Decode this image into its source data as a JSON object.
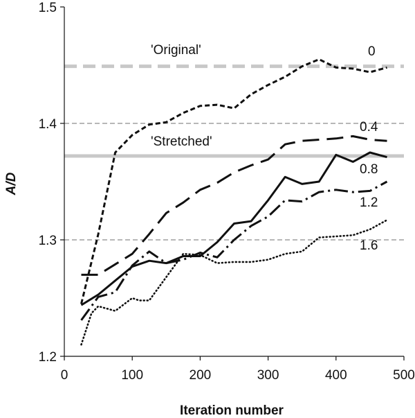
{
  "chart_data": {
    "type": "line",
    "xlabel": "Iteration number",
    "ylabel": "A/D",
    "xlim": [
      0,
      500
    ],
    "ylim": [
      1.2,
      1.5
    ],
    "xticks": [
      "0",
      "100",
      "200",
      "300",
      "400",
      "500"
    ],
    "yticks": [
      "1.2",
      "1.3",
      "1.4",
      "1.5"
    ],
    "grid": false,
    "legend": "none",
    "reference_lines": [
      {
        "label": "'Original'",
        "y": 1.449,
        "style": "thick-dashed",
        "color": "#c8c8c8"
      },
      {
        "label": "'Stretched'",
        "y": 1.372,
        "style": "thick-solid",
        "color": "#c8c8c8"
      },
      {
        "label": "",
        "y": 1.4,
        "style": "thin-dashed",
        "color": "#8c8c8c"
      },
      {
        "label": "",
        "y": 1.3,
        "style": "thin-dashed",
        "color": "#8c8c8c"
      }
    ],
    "series": [
      {
        "name": "0",
        "dash": "short-dash",
        "x": [
          25,
          50,
          75,
          100,
          125,
          150,
          175,
          200,
          225,
          250,
          275,
          300,
          325,
          350,
          375,
          400,
          425,
          450,
          475
        ],
        "y": [
          1.245,
          1.305,
          1.375,
          1.39,
          1.399,
          1.401,
          1.409,
          1.415,
          1.416,
          1.413,
          1.425,
          1.433,
          1.44,
          1.449,
          1.455,
          1.448,
          1.447,
          1.444,
          1.448
        ]
      },
      {
        "name": "0.4",
        "dash": "long-dash",
        "x": [
          25,
          50,
          75,
          100,
          125,
          150,
          175,
          200,
          225,
          250,
          275,
          300,
          325,
          350,
          375,
          400,
          425,
          450,
          475
        ],
        "y": [
          1.27,
          1.27,
          1.279,
          1.288,
          1.305,
          1.323,
          1.332,
          1.343,
          1.349,
          1.358,
          1.364,
          1.369,
          1.382,
          1.385,
          1.386,
          1.387,
          1.389,
          1.386,
          1.385
        ]
      },
      {
        "name": "0.8",
        "dash": "solid",
        "x": [
          25,
          50,
          75,
          100,
          125,
          150,
          175,
          200,
          225,
          250,
          275,
          300,
          325,
          350,
          375,
          400,
          425,
          450,
          475
        ],
        "y": [
          1.244,
          1.253,
          1.265,
          1.277,
          1.282,
          1.28,
          1.286,
          1.286,
          1.298,
          1.314,
          1.316,
          1.334,
          1.354,
          1.348,
          1.35,
          1.373,
          1.367,
          1.375,
          1.371
        ]
      },
      {
        "name": "1.2",
        "dash": "dash-dot",
        "x": [
          25,
          50,
          75,
          100,
          125,
          150,
          175,
          200,
          225,
          250,
          275,
          300,
          325,
          350,
          375,
          400,
          425,
          450,
          475
        ],
        "y": [
          1.231,
          1.251,
          1.255,
          1.278,
          1.29,
          1.28,
          1.283,
          1.289,
          1.285,
          1.3,
          1.312,
          1.32,
          1.334,
          1.333,
          1.341,
          1.343,
          1.341,
          1.342,
          1.35
        ]
      },
      {
        "name": "1.6",
        "dash": "dotted",
        "x": [
          25,
          40,
          50,
          75,
          100,
          110,
          125,
          150,
          175,
          200,
          225,
          250,
          275,
          300,
          325,
          350,
          375,
          400,
          425,
          450,
          475
        ],
        "y": [
          1.21,
          1.237,
          1.243,
          1.239,
          1.25,
          1.248,
          1.248,
          1.268,
          1.288,
          1.287,
          1.28,
          1.281,
          1.281,
          1.283,
          1.288,
          1.29,
          1.302,
          1.303,
          1.304,
          1.309,
          1.317
        ]
      }
    ],
    "annotations": {
      "original": "'Original'",
      "stretched": "'Stretched'",
      "s0": "0",
      "s04": "0.4",
      "s08": "0.8",
      "s12": "1.2",
      "s16": "1.6"
    }
  }
}
